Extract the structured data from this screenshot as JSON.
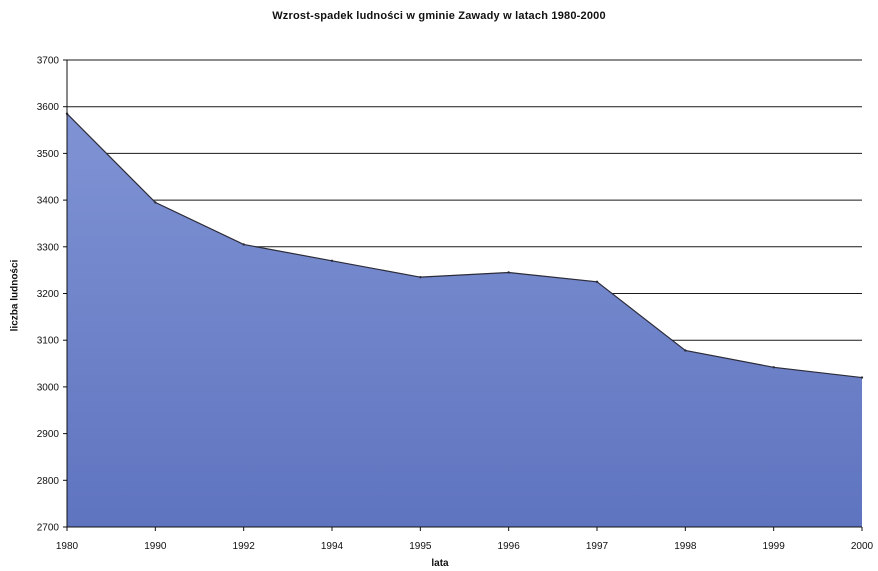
{
  "chart_data": {
    "type": "area",
    "title": "Wzrost-spadek ludności w gminie Zawady w latach 1980-2000",
    "xlabel": "lata",
    "ylabel": "liczba ludności",
    "categories": [
      "1980",
      "1990",
      "1992",
      "1994",
      "1995",
      "1996",
      "1997",
      "1998",
      "1999",
      "2000"
    ],
    "series": [
      {
        "values": [
          3585,
          3395,
          3305,
          3270,
          3235,
          3245,
          3225,
          3078,
          3042,
          3020
        ]
      }
    ],
    "ylim": [
      2700,
      3700
    ],
    "yticks": [
      2700,
      2800,
      2900,
      3000,
      3100,
      3200,
      3300,
      3400,
      3500,
      3600,
      3700
    ],
    "grid": true,
    "legend": "none",
    "colors": {
      "area_top": "#7f93d4",
      "area_bottom": "#5f74bf",
      "outline": "#2b2b3a",
      "grid": "#1a1a1a"
    }
  }
}
